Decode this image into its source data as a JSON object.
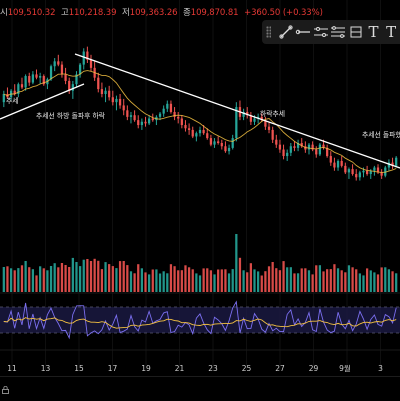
{
  "ohlc": {
    "open_label": "시",
    "open": "109,510.32",
    "high_label": "고",
    "high": "110,218.39",
    "low_label": "저",
    "low": "109,363.26",
    "close_label": "종",
    "close": "109,870.81",
    "change": "+360.50 (+0.33%)"
  },
  "toolbar": {
    "tools": [
      {
        "icon": "trend-line-icon"
      },
      {
        "icon": "horizontal-ray-icon"
      },
      {
        "icon": "parallel-channel-icon"
      },
      {
        "icon": "fib-levels-icon"
      },
      {
        "icon": "long-position-icon"
      },
      {
        "icon": "text-tool-icon",
        "label": "T"
      },
      {
        "icon": "text-tool-icon",
        "label": "T"
      }
    ]
  },
  "colors": {
    "up": "#26a69a",
    "down": "#ef5350",
    "ma": "#f5c242",
    "trendline": "#ffffff",
    "rsi": "#7b6ff0",
    "rsi_signal": "#f5c242",
    "rsi_band": "#1c1a45"
  },
  "chart_data": {
    "type": "candlestick",
    "date_labels": [
      "11",
      "13",
      "15",
      "17",
      "19",
      "21",
      "23",
      "25",
      "27",
      "29",
      "9월",
      "3"
    ],
    "annotations": [
      {
        "text": "추세선 하방 돌파후 하락"
      },
      {
        "text": "하락추세"
      },
      {
        "text": "추세선 돌파했"
      },
      {
        "text": "추세"
      }
    ],
    "candles": [
      [
        55,
        62,
        52,
        60
      ],
      [
        60,
        64,
        57,
        58
      ],
      [
        58,
        63,
        56,
        62
      ],
      [
        62,
        66,
        59,
        60
      ],
      [
        60,
        67,
        58,
        66
      ],
      [
        66,
        70,
        63,
        64
      ],
      [
        64,
        72,
        62,
        71
      ],
      [
        71,
        73,
        65,
        67
      ],
      [
        67,
        74,
        66,
        72
      ],
      [
        72,
        75,
        69,
        70
      ],
      [
        70,
        73,
        66,
        71
      ],
      [
        71,
        72,
        65,
        66
      ],
      [
        66,
        70,
        63,
        69
      ],
      [
        69,
        78,
        68,
        77
      ],
      [
        77,
        82,
        74,
        80
      ],
      [
        80,
        84,
        77,
        78
      ],
      [
        78,
        80,
        70,
        72
      ],
      [
        72,
        76,
        66,
        68
      ],
      [
        68,
        70,
        60,
        62
      ],
      [
        62,
        68,
        57,
        66
      ],
      [
        66,
        74,
        64,
        72
      ],
      [
        72,
        79,
        70,
        78
      ],
      [
        78,
        88,
        75,
        86
      ],
      [
        86,
        89,
        79,
        81
      ],
      [
        81,
        84,
        74,
        76
      ],
      [
        76,
        80,
        68,
        70
      ],
      [
        70,
        73,
        61,
        63
      ],
      [
        63,
        67,
        58,
        60
      ],
      [
        60,
        64,
        55,
        62
      ],
      [
        62,
        65,
        56,
        58
      ],
      [
        58,
        62,
        53,
        55
      ],
      [
        55,
        59,
        50,
        57
      ],
      [
        57,
        60,
        51,
        53
      ],
      [
        53,
        57,
        47,
        50
      ],
      [
        50,
        53,
        44,
        46
      ],
      [
        46,
        49,
        42,
        47
      ],
      [
        47,
        50,
        43,
        44
      ],
      [
        44,
        47,
        39,
        41
      ],
      [
        41,
        45,
        38,
        43
      ],
      [
        43,
        46,
        40,
        42
      ],
      [
        42,
        47,
        41,
        45
      ],
      [
        45,
        48,
        43,
        44
      ],
      [
        44,
        47,
        41,
        46
      ],
      [
        46,
        49,
        44,
        48
      ],
      [
        48,
        53,
        46,
        51
      ],
      [
        51,
        56,
        49,
        54
      ],
      [
        54,
        56,
        48,
        49
      ],
      [
        49,
        52,
        44,
        46
      ],
      [
        46,
        49,
        42,
        45
      ],
      [
        45,
        47,
        39,
        41
      ],
      [
        41,
        44,
        37,
        39
      ],
      [
        39,
        42,
        35,
        38
      ],
      [
        38,
        40,
        33,
        34
      ],
      [
        34,
        37,
        31,
        36
      ],
      [
        36,
        40,
        34,
        38
      ],
      [
        38,
        41,
        35,
        36
      ],
      [
        36,
        39,
        32,
        33
      ],
      [
        33,
        35,
        28,
        29
      ],
      [
        29,
        33,
        27,
        31
      ],
      [
        31,
        34,
        29,
        30
      ],
      [
        30,
        32,
        26,
        28
      ],
      [
        28,
        31,
        24,
        25
      ],
      [
        25,
        29,
        23,
        27
      ],
      [
        27,
        35,
        26,
        33
      ],
      [
        33,
        55,
        31,
        52
      ],
      [
        52,
        56,
        44,
        46
      ],
      [
        46,
        51,
        44,
        49
      ],
      [
        49,
        52,
        45,
        47
      ],
      [
        47,
        49,
        41,
        43
      ],
      [
        43,
        47,
        41,
        45
      ],
      [
        45,
        48,
        42,
        46
      ],
      [
        46,
        48,
        43,
        44
      ],
      [
        44,
        46,
        38,
        40
      ],
      [
        40,
        43,
        36,
        38
      ],
      [
        38,
        40,
        30,
        32
      ],
      [
        32,
        35,
        27,
        29
      ],
      [
        29,
        32,
        24,
        26
      ],
      [
        26,
        29,
        20,
        22
      ],
      [
        22,
        26,
        19,
        24
      ],
      [
        24,
        30,
        22,
        28
      ],
      [
        28,
        31,
        25,
        27
      ],
      [
        27,
        32,
        25,
        30
      ],
      [
        30,
        33,
        27,
        28
      ],
      [
        28,
        31,
        24,
        26
      ],
      [
        26,
        30,
        23,
        29
      ],
      [
        29,
        31,
        25,
        26
      ],
      [
        26,
        28,
        21,
        23
      ],
      [
        23,
        30,
        22,
        29
      ],
      [
        29,
        32,
        26,
        27
      ],
      [
        27,
        29,
        21,
        22
      ],
      [
        22,
        25,
        16,
        18
      ],
      [
        18,
        21,
        13,
        15
      ],
      [
        15,
        20,
        13,
        19
      ],
      [
        19,
        22,
        15,
        16
      ],
      [
        16,
        18,
        11,
        12
      ],
      [
        12,
        15,
        8,
        14
      ],
      [
        14,
        17,
        10,
        11
      ],
      [
        11,
        14,
        7,
        9
      ],
      [
        9,
        13,
        7,
        12
      ],
      [
        12,
        15,
        9,
        13
      ],
      [
        13,
        16,
        10,
        11
      ],
      [
        11,
        14,
        8,
        13
      ],
      [
        13,
        16,
        10,
        15
      ],
      [
        15,
        17,
        11,
        12
      ],
      [
        12,
        14,
        8,
        10
      ],
      [
        10,
        16,
        9,
        15
      ],
      [
        15,
        20,
        13,
        18
      ],
      [
        18,
        21,
        14,
        16
      ],
      [
        16,
        22,
        15,
        21
      ]
    ]
  }
}
